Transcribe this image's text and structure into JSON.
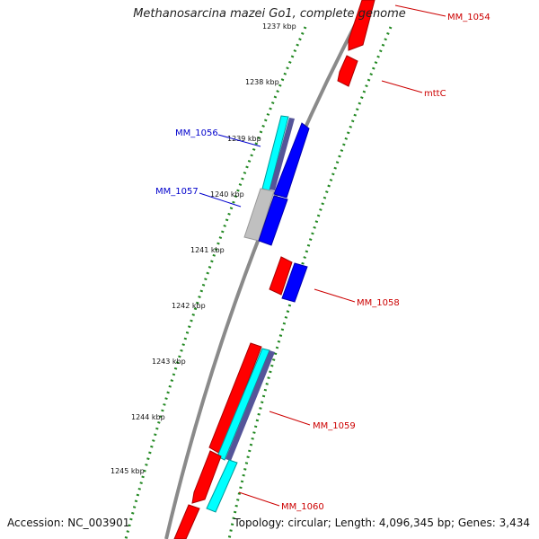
{
  "title": "Methanosarcina mazei Go1, complete genome",
  "footer": {
    "accession": "Accession: NC_003901",
    "topology": "Topology: circular; Length: 4,096,345 bp; Genes: 3,434"
  },
  "colors": {
    "forward_gene": "#ff0000",
    "reverse_gene": "#0000ff",
    "forward_cds": "#00ffff",
    "reverse_cds": "#4444aa",
    "pseudo": "#c0c0c0",
    "backbone": "#808080",
    "ruler": "#228822"
  },
  "ruler_labels": [
    "1237 kbp",
    "1238 kbp",
    "1239 kbp",
    "1240 kbp",
    "1241 kbp",
    "1242 kbp",
    "1243 kbp",
    "1244 kbp",
    "1245 kbp"
  ],
  "genes": [
    {
      "name": "MM_1054",
      "color": "#cc0000"
    },
    {
      "name": "mttC",
      "color": "#cc0000"
    },
    {
      "name": "MM_1056",
      "color": "#0000cc"
    },
    {
      "name": "MM_1057",
      "color": "#0000cc"
    },
    {
      "name": "MM_1058",
      "color": "#cc0000"
    },
    {
      "name": "MM_1059",
      "color": "#cc0000"
    },
    {
      "name": "MM_1060",
      "color": "#cc0000"
    }
  ]
}
